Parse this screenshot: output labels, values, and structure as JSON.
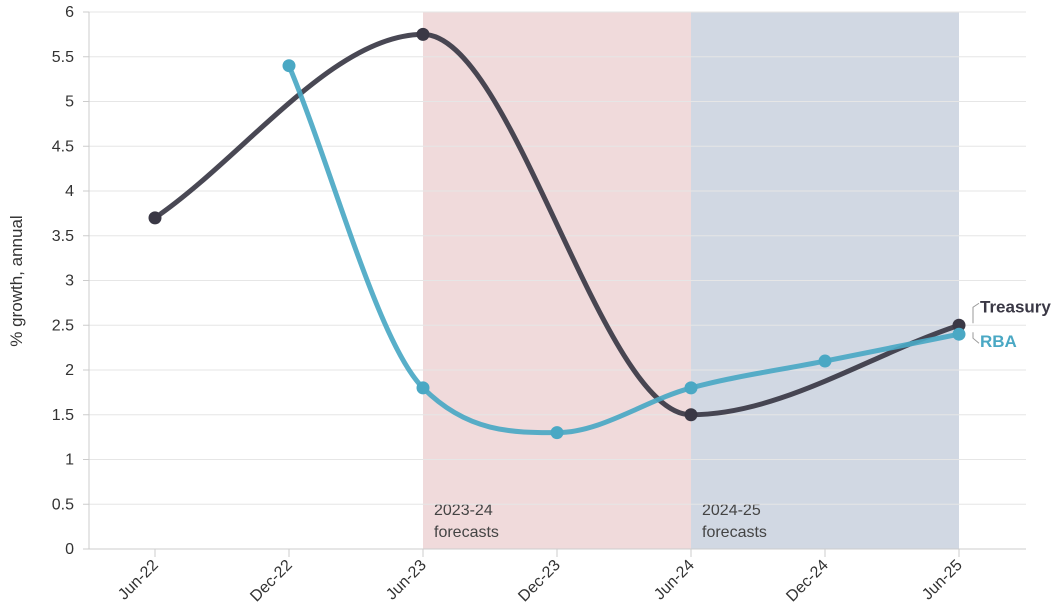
{
  "chart_data": {
    "type": "line",
    "ylabel": "% growth, annual",
    "ylim": [
      0,
      6
    ],
    "yticks": [
      "0",
      "0.5",
      "1",
      "1.5",
      "2",
      "2.5",
      "3",
      "3.5",
      "4",
      "4.5",
      "5",
      "5.5",
      "6"
    ],
    "categories": [
      "Jun-22",
      "Dec-22",
      "Jun-23",
      "Dec-23",
      "Jun-24",
      "Dec-24",
      "Jun-25"
    ],
    "grid": true,
    "regions": [
      {
        "label_line1": "2023-24",
        "label_line2": "forecasts",
        "start": "Jun-23",
        "end": "Jun-24",
        "color": "#f0dadb"
      },
      {
        "label_line1": "2024-25",
        "label_line2": "forecasts",
        "start": "Jun-24",
        "end": "Jun-25",
        "color": "#d1d8e3"
      }
    ],
    "series": [
      {
        "name": "Treasury",
        "color": "#3a3845",
        "values": [
          3.7,
          null,
          5.75,
          null,
          1.5,
          null,
          2.5
        ]
      },
      {
        "name": "RBA",
        "color": "#4aa8c4",
        "values": [
          null,
          5.4,
          1.8,
          1.3,
          1.8,
          2.1,
          2.4
        ]
      }
    ]
  }
}
